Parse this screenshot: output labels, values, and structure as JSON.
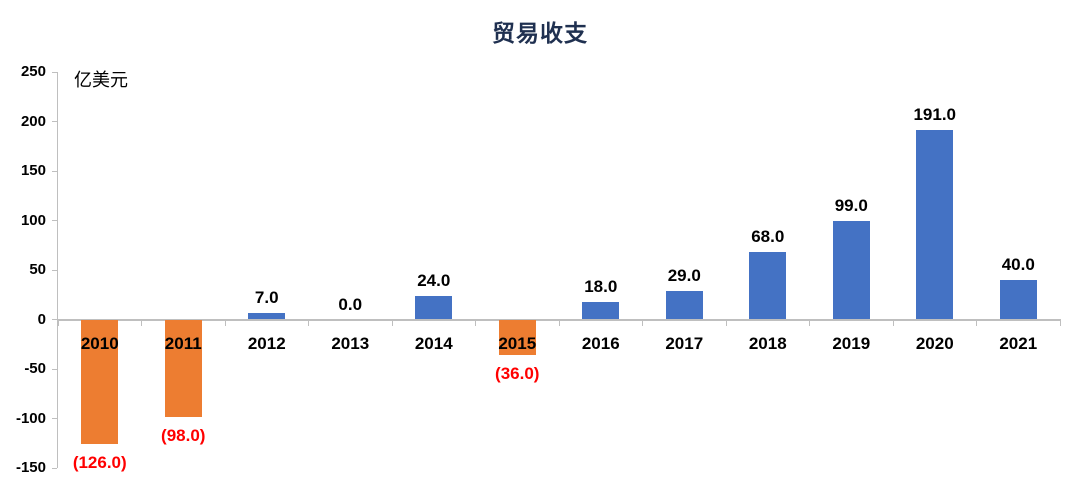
{
  "chart_data": {
    "type": "bar",
    "title": "贸易收支",
    "unit_label": "亿美元",
    "categories": [
      "2010",
      "2011",
      "2012",
      "2013",
      "2014",
      "2015",
      "2016",
      "2017",
      "2018",
      "2019",
      "2020",
      "2021"
    ],
    "values": [
      -126,
      -98,
      7,
      0,
      24,
      -36,
      18,
      29,
      68,
      99,
      191,
      40
    ],
    "data_labels": [
      "(126.0)",
      "(98.0)",
      "7.0",
      "0.0",
      "24.0",
      "(36.0)",
      "18.0",
      "29.0",
      "68.0",
      "99.0",
      "191.0",
      "40.0"
    ],
    "ylim": [
      -150,
      250
    ],
    "ytick_step": 50,
    "ytick_labels": [
      "250",
      "200",
      "150",
      "100",
      "50",
      "0",
      "-50",
      "-100",
      "-150"
    ],
    "xlabel": "",
    "ylabel": "",
    "legend": "none",
    "grid": false,
    "colors": {
      "positive_bar": "#4472C4",
      "negative_bar": "#ED7D31",
      "positive_label": "#000000",
      "negative_label": "#FF0000",
      "title": "#1F3050",
      "axis_line": "#BFBFBF",
      "tick_label": "#000000"
    }
  }
}
